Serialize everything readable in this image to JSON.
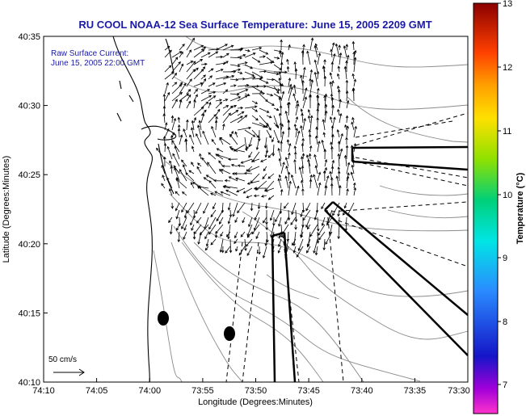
{
  "title": "RU COOL  NOAA-12  Sea Surface Temperature:  June 15, 2005 2209 GMT",
  "legend": {
    "line1": "Raw Surface Current:",
    "line2": "June 15, 2005 22:00 GMT"
  },
  "xlabel": "Longitude (Degrees:Minutes)",
  "ylabel": "Latitude (Degrees:Minutes)",
  "x_ticks": [
    "74:10",
    "74:05",
    "74:00",
    "73:55",
    "73:50",
    "73:45",
    "73:40",
    "73:35",
    "73:30"
  ],
  "y_ticks": [
    "40:35",
    "40:30",
    "40:25",
    "40:20",
    "40:15",
    "40:10"
  ],
  "scale_label": "50 cm/s",
  "colorbar": {
    "label": "Temperature (°C)",
    "ticks": [
      "13",
      "12",
      "11",
      "10",
      "9",
      "8",
      "7"
    ]
  },
  "colors": {
    "title": "#1a1aa6",
    "land": "#ffffff",
    "contour": "#8a8a8a"
  }
}
